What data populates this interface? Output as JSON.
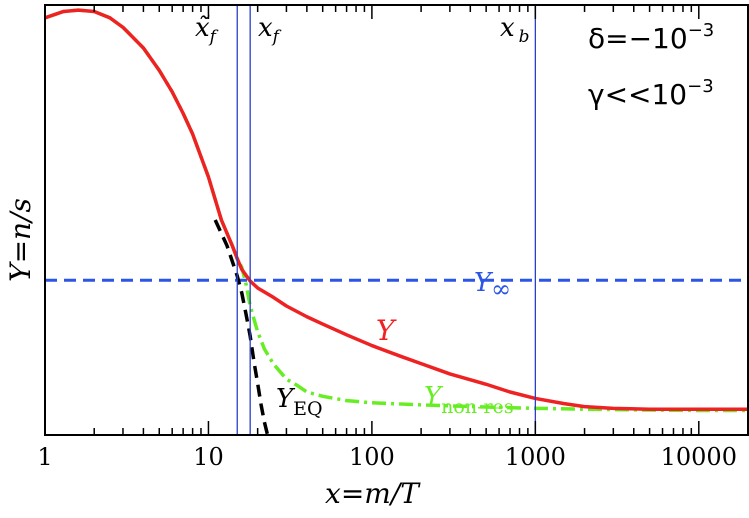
{
  "chart_data": {
    "type": "line",
    "title": "",
    "xlabel": "x=m/T",
    "ylabel": "Y=n/s",
    "xscale": "log",
    "xlim": [
      1,
      20000
    ],
    "ylim": [
      0,
      1
    ],
    "y_ticks_labeled": false,
    "x_ticks": [
      {
        "value": 1,
        "label": "1"
      },
      {
        "value": 10,
        "label": "10"
      },
      {
        "value": 100,
        "label": "100"
      },
      {
        "value": 1000,
        "label": "1000"
      },
      {
        "value": 10000,
        "label": "10000"
      }
    ],
    "params": {
      "delta": "δ=−10",
      "delta_exp": "−3",
      "gamma": "γ<<10",
      "gamma_exp": "−3"
    },
    "vlines": [
      {
        "name": "x-tilde-f",
        "x": 15,
        "label": "x̃",
        "sub": "f"
      },
      {
        "name": "x-f",
        "x": 18,
        "label": "x",
        "sub": "f"
      },
      {
        "name": "x-b",
        "x": 1000,
        "label": "x",
        "sub": "b"
      }
    ],
    "series": [
      {
        "name": "Y",
        "label": "Y",
        "color": "#ee2222",
        "style": "solid",
        "x": [
          1,
          1.3,
          1.6,
          2,
          2.5,
          3,
          4,
          5,
          6,
          7,
          8,
          10,
          12,
          14,
          15,
          16,
          18,
          20,
          25,
          30,
          40,
          50,
          70,
          100,
          150,
          200,
          300,
          500,
          700,
          1000,
          1500,
          2000,
          3000,
          5000,
          10000,
          20000
        ],
        "y": [
          0.97,
          0.985,
          0.988,
          0.985,
          0.97,
          0.948,
          0.9,
          0.848,
          0.798,
          0.748,
          0.7,
          0.6,
          0.5,
          0.44,
          0.41,
          0.385,
          0.358,
          0.342,
          0.32,
          0.3,
          0.275,
          0.258,
          0.233,
          0.208,
          0.183,
          0.166,
          0.142,
          0.118,
          0.1,
          0.085,
          0.073,
          0.066,
          0.062,
          0.06,
          0.06,
          0.06
        ]
      },
      {
        "name": "Y_non-res",
        "label": "Y",
        "sub": "non-res",
        "color": "#66ee22",
        "style": "dashdot",
        "x": [
          1,
          1.3,
          1.6,
          2,
          2.5,
          3,
          4,
          5,
          6,
          7,
          8,
          10,
          12,
          14,
          15,
          16,
          17,
          18,
          20,
          22,
          25,
          30,
          35,
          40,
          50,
          70,
          100,
          200,
          500,
          1000,
          2000,
          5000,
          10000,
          20000
        ],
        "y": [
          0.97,
          0.985,
          0.988,
          0.985,
          0.97,
          0.948,
          0.9,
          0.848,
          0.798,
          0.748,
          0.7,
          0.6,
          0.5,
          0.44,
          0.41,
          0.39,
          0.35,
          0.3,
          0.24,
          0.2,
          0.165,
          0.13,
          0.115,
          0.1,
          0.09,
          0.08,
          0.075,
          0.07,
          0.065,
          0.062,
          0.06,
          0.058,
          0.057,
          0.057
        ]
      },
      {
        "name": "Y_EQ",
        "label": "Y",
        "sub": "EQ",
        "color": "#000000",
        "style": "dashed",
        "x": [
          11,
          13,
          15,
          16,
          17,
          18,
          19,
          20,
          21,
          22,
          23
        ],
        "y": [
          0.5,
          0.44,
          0.37,
          0.33,
          0.28,
          0.23,
          0.17,
          0.12,
          0.07,
          0.03,
          0.0
        ]
      },
      {
        "name": "Y_inf",
        "label": "Y",
        "sub": "∞",
        "color": "#2a55e5",
        "style": "dashed",
        "x": [
          1,
          20000
        ],
        "y": [
          0.36,
          0.36
        ]
      }
    ]
  }
}
